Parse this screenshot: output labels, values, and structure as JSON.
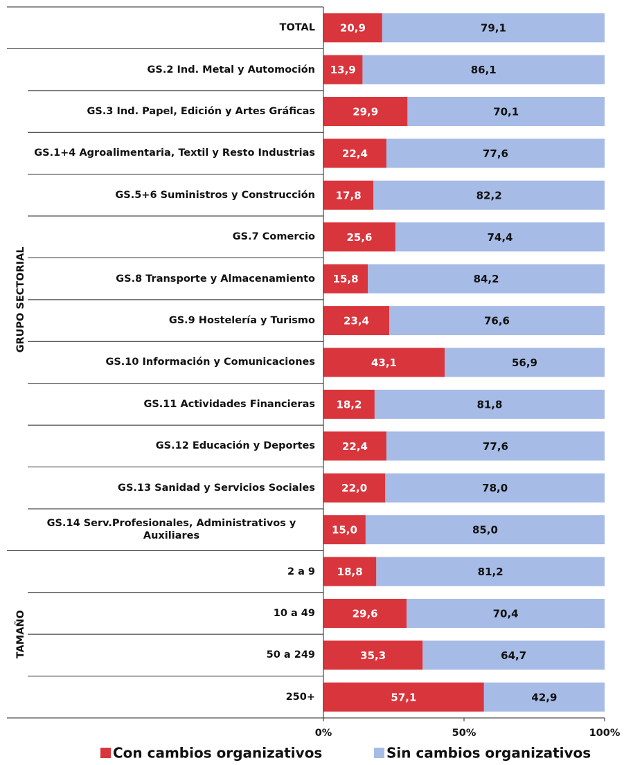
{
  "chart_data": {
    "type": "stacked_barh",
    "categories": [
      "TOTAL",
      "GS.2 Ind. Metal y Automoción",
      "GS.3 Ind. Papel, Edición y Artes Gráficas",
      "GS.1+4 Agroalimentaria, Textil y Resto Industrias",
      "GS.5+6 Suministros y Construcción",
      "GS.7 Comercio",
      "GS.8 Transporte y Almacenamiento",
      "GS.9 Hostelería y Turismo",
      "GS.10 Información y Comunicaciones",
      "GS.11 Actividades Financieras",
      "GS.12 Educación y Deportes",
      "GS.13 Sanidad y Servicios Sociales",
      "GS.14 Serv.Profesionales, Administrativos y Auxiliares",
      "2 a 9",
      "10 a 49",
      "50 a 249",
      "250+"
    ],
    "groups": [
      "GRUPO SECTORIAL",
      "TAMAÑO"
    ],
    "series": [
      {
        "name": "Con cambios organizativos",
        "color": "#d9353c",
        "values": [
          20.9,
          13.9,
          29.9,
          22.4,
          17.8,
          25.6,
          15.8,
          23.4,
          43.1,
          18.2,
          22.4,
          22.0,
          15.0,
          18.8,
          29.6,
          35.3,
          57.1
        ],
        "value_labels": [
          "20,9",
          "13,9",
          "29,9",
          "22,4",
          "17,8",
          "25,6",
          "15,8",
          "23,4",
          "43,1",
          "18,2",
          "22,4",
          "22,0",
          "15,0",
          "18,8",
          "29,6",
          "35,3",
          "57,1"
        ]
      },
      {
        "name": "Sin cambios organizativos",
        "color": "#a6bbe5",
        "values": [
          79.1,
          86.1,
          70.1,
          77.6,
          82.2,
          74.4,
          84.2,
          76.6,
          56.9,
          81.8,
          77.6,
          78.0,
          85.0,
          81.2,
          70.4,
          64.7,
          42.9
        ],
        "value_labels": [
          "79,1",
          "86,1",
          "70,1",
          "77,6",
          "82,2",
          "74,4",
          "84,2",
          "76,6",
          "56,9",
          "81,8",
          "77,6",
          "78,0",
          "85,0",
          "81,2",
          "70,4",
          "64,7",
          "42,9"
        ]
      }
    ],
    "xlim": [
      0,
      100
    ],
    "xticks": [
      {
        "value": 0,
        "label": "0%"
      },
      {
        "value": 50,
        "label": "50%"
      },
      {
        "value": 100,
        "label": "100%"
      }
    ],
    "legend": "bottom"
  }
}
